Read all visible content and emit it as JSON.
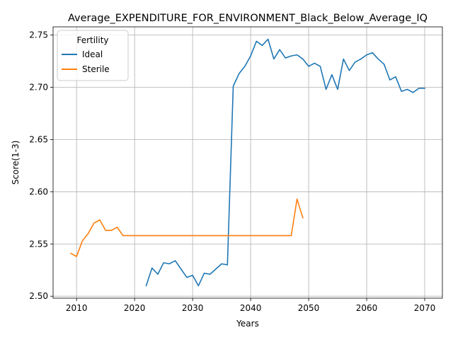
{
  "chart_data": {
    "type": "line",
    "title": "Average_EXPENDITURE_FOR_ENVIRONMENT_Black_Below_Average_IQ",
    "xlabel": "Years",
    "ylabel": "Score(1-3)",
    "xlim": [
      2005.95,
      2073.05
    ],
    "ylim": [
      2.4981,
      2.7578
    ],
    "x_ticks": [
      2010,
      2020,
      2030,
      2040,
      2050,
      2060,
      2070
    ],
    "y_ticks": [
      2.5,
      2.55,
      2.6,
      2.65,
      2.7,
      2.75
    ],
    "x_tick_labels": [
      "2010",
      "2020",
      "2030",
      "2040",
      "2050",
      "2060",
      "2070"
    ],
    "y_tick_labels": [
      "2.50",
      "2.55",
      "2.60",
      "2.65",
      "2.70",
      "2.75"
    ],
    "grid": true,
    "legend": {
      "title": "Fertility",
      "position": "top-left"
    },
    "series": [
      {
        "name": "Ideal",
        "color": "#1f77b4",
        "x": [
          2022,
          2023,
          2024,
          2025,
          2026,
          2027,
          2028,
          2029,
          2030,
          2031,
          2032,
          2033,
          2034,
          2035,
          2036,
          2037,
          2038,
          2039,
          2040,
          2041,
          2042,
          2043,
          2044,
          2045,
          2046,
          2047,
          2048,
          2049,
          2050,
          2051,
          2052,
          2053,
          2054,
          2055,
          2056,
          2057,
          2058,
          2059,
          2060,
          2061,
          2062,
          2063,
          2064,
          2065,
          2066,
          2067,
          2068,
          2069,
          2070
        ],
        "y": [
          2.51,
          2.527,
          2.521,
          2.532,
          2.531,
          2.534,
          2.526,
          2.518,
          2.52,
          2.51,
          2.522,
          2.521,
          2.526,
          2.531,
          2.53,
          2.701,
          2.713,
          2.72,
          2.73,
          2.744,
          2.74,
          2.746,
          2.727,
          2.736,
          2.728,
          2.73,
          2.731,
          2.727,
          2.72,
          2.723,
          2.72,
          2.698,
          2.712,
          2.698,
          2.727,
          2.716,
          2.724,
          2.727,
          2.731,
          2.733,
          2.727,
          2.722,
          2.707,
          2.71,
          2.696,
          2.698,
          2.695,
          2.699,
          2.699
        ]
      },
      {
        "name": "Sterile",
        "color": "#ff7f0e",
        "x": [
          2009,
          2010,
          2011,
          2012,
          2013,
          2014,
          2015,
          2016,
          2017,
          2018,
          2019,
          2020,
          2021,
          2022,
          2023,
          2024,
          2025,
          2026,
          2027,
          2028,
          2029,
          2030,
          2031,
          2032,
          2033,
          2034,
          2035,
          2036,
          2037,
          2038,
          2039,
          2040,
          2041,
          2042,
          2043,
          2044,
          2045,
          2046,
          2047,
          2048,
          2049
        ],
        "y": [
          2.541,
          2.538,
          2.553,
          2.56,
          2.57,
          2.573,
          2.563,
          2.563,
          2.566,
          2.558,
          2.558,
          2.558,
          2.558,
          2.558,
          2.558,
          2.558,
          2.558,
          2.558,
          2.558,
          2.558,
          2.558,
          2.558,
          2.558,
          2.558,
          2.558,
          2.558,
          2.558,
          2.558,
          2.558,
          2.558,
          2.558,
          2.558,
          2.558,
          2.558,
          2.558,
          2.558,
          2.558,
          2.558,
          2.558,
          2.593,
          2.575
        ]
      }
    ]
  }
}
